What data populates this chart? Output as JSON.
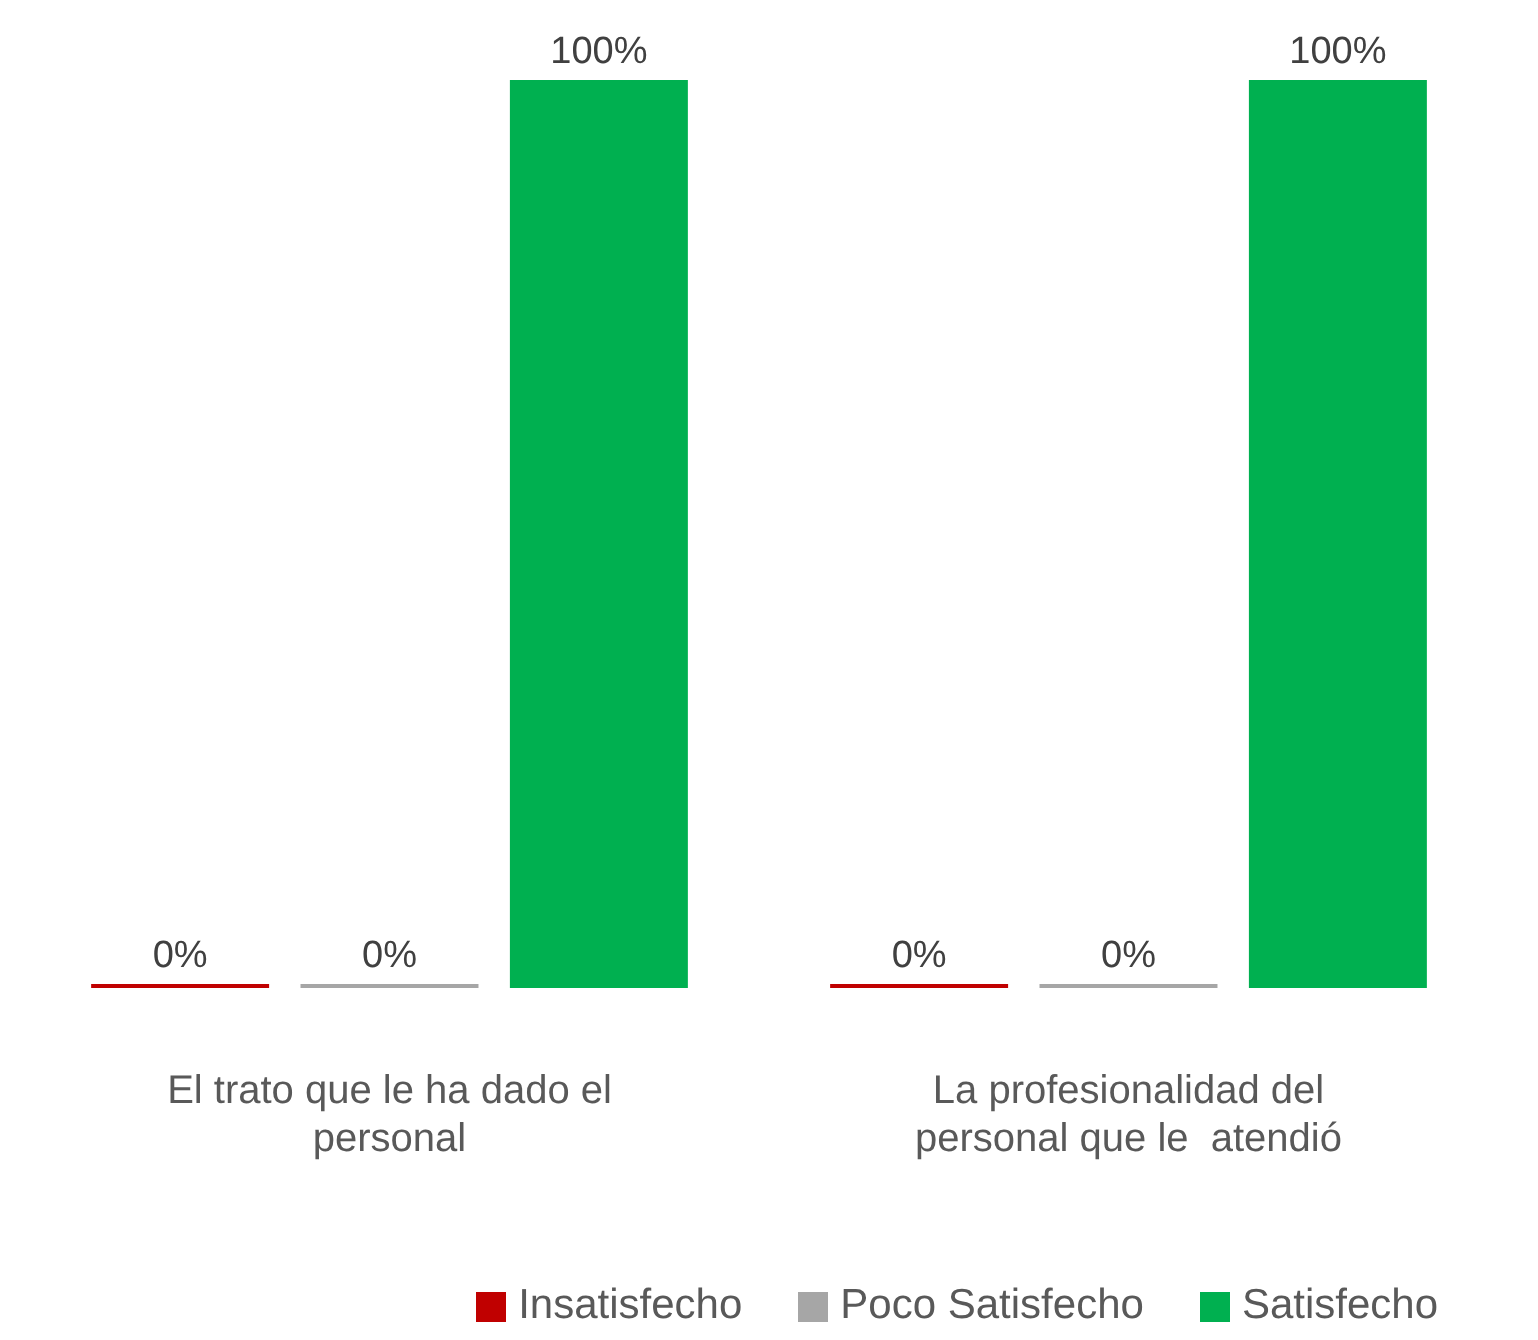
{
  "chart_data": {
    "type": "bar",
    "categories": [
      "El trato que le ha dado el personal",
      "La profesionalidad del personal que le  atendió"
    ],
    "series": [
      {
        "name": "Insatisfecho",
        "color": "#c00000",
        "values": [
          0,
          0
        ],
        "value_labels": [
          "0%",
          "0%"
        ]
      },
      {
        "name": "Poco Satisfecho",
        "color": "#a6a6a6",
        "values": [
          0,
          0
        ],
        "value_labels": [
          "0%",
          "0%"
        ]
      },
      {
        "name": "Satisfecho",
        "color": "#00b050",
        "values": [
          100,
          100
        ],
        "value_labels": [
          "100%",
          "100%"
        ]
      }
    ],
    "legend": "bottom",
    "grid": false
  }
}
